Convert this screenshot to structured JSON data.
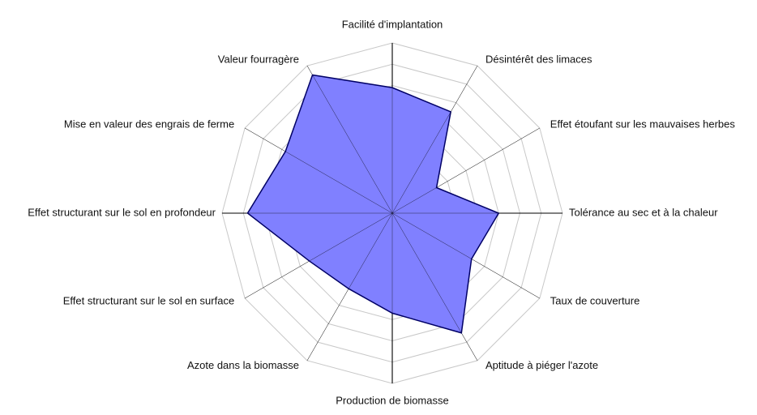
{
  "chart_data": {
    "type": "radar",
    "axes": [
      "Facilité d'implantation",
      "Désintérêt des limaces",
      "Effet étoufant sur les mauvaises herbes",
      "Tolérance au sec et à la chaleur",
      "Taux de couverture",
      "Aptitude à piéger l'azote",
      "Production de biomasse",
      "Azote dans la biomasse",
      "Effet structurant sur le sol en surface",
      "Effet structurant sur le sol en profondeur",
      "Mise en valeur des engrais de ferme",
      "Valeur fourragère"
    ],
    "scale": {
      "min": 0,
      "max": 8,
      "rings": 8
    },
    "series": [
      {
        "values": [
          5.9,
          5.5,
          2.4,
          5.0,
          4.3,
          6.5,
          4.7,
          4.1,
          4.5,
          6.8,
          5.8,
          7.5
        ]
      }
    ],
    "grid": true,
    "colors": {
      "fill": "#8080ff",
      "stroke": "#000066",
      "grid": "#c8c8c8",
      "axis": "#000000"
    }
  }
}
